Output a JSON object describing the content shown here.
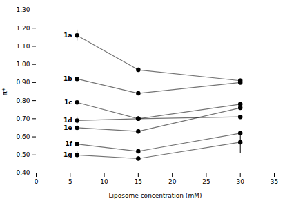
{
  "chart_data": {
    "type": "line",
    "xlabel": "Liposome concentration (mM)",
    "ylabel": "π*",
    "x": [
      6,
      15,
      30
    ],
    "series": [
      {
        "name": "1a",
        "values": [
          1.16,
          0.97,
          0.91
        ],
        "yerr": [
          0.03,
          0.01,
          0.01
        ]
      },
      {
        "name": "1b",
        "values": [
          0.92,
          0.84,
          0.9
        ],
        "yerr": [
          0.01,
          0.01,
          0.01
        ]
      },
      {
        "name": "1c",
        "values": [
          0.79,
          0.7,
          0.78
        ],
        "yerr": [
          0.01,
          0.01,
          0.01
        ]
      },
      {
        "name": "1d",
        "values": [
          0.69,
          0.7,
          0.71
        ],
        "yerr": [
          0.02,
          0.01,
          0.01
        ]
      },
      {
        "name": "1e",
        "values": [
          0.65,
          0.63,
          0.76
        ],
        "yerr": [
          0.01,
          0.01,
          0.01
        ]
      },
      {
        "name": "1f",
        "values": [
          0.56,
          0.52,
          0.62
        ],
        "yerr": [
          0.01,
          0.01,
          0.01
        ]
      },
      {
        "name": "1g",
        "values": [
          0.5,
          0.48,
          0.57
        ],
        "yerr": [
          0.02,
          0.01,
          0.06
        ]
      }
    ],
    "xlim": [
      0,
      35
    ],
    "xticks": [
      0,
      5,
      10,
      15,
      20,
      25,
      30,
      35
    ],
    "ylim": [
      0.4,
      1.3
    ],
    "yticks": [
      {
        "value": 0.4,
        "label": "0.40"
      },
      {
        "value": 0.5,
        "label": "0.50"
      },
      {
        "value": 0.6,
        "label": "0.60"
      },
      {
        "value": 0.7,
        "label": "0.70"
      },
      {
        "value": 0.8,
        "label": "0.80"
      },
      {
        "value": 0.9,
        "label": "0.90"
      },
      {
        "value": 1.0,
        "label": "1.00"
      },
      {
        "value": 1.1,
        "label": "1.10"
      },
      {
        "value": 1.2,
        "label": "1.20"
      },
      {
        "value": 1.3,
        "label": "1.30"
      }
    ],
    "marker": "circle",
    "grid": false
  }
}
